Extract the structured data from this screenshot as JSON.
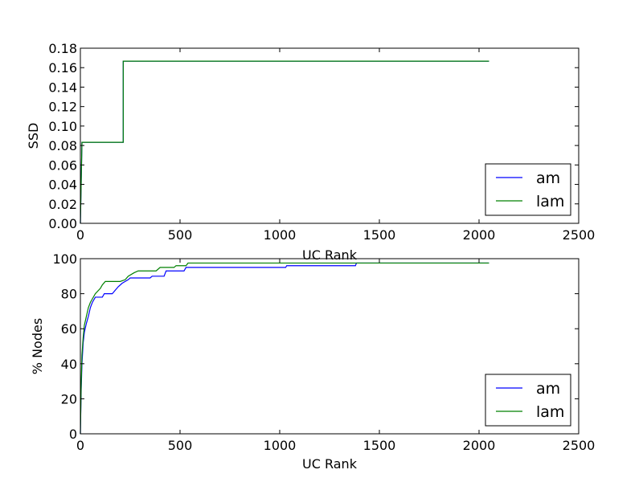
{
  "chart_data": [
    {
      "type": "line",
      "xlabel": "UC Rank",
      "ylabel": "SSD",
      "xlim": [
        0,
        2500
      ],
      "ylim": [
        0,
        0.18
      ],
      "xticks": [
        "0",
        "500",
        "1000",
        "1500",
        "2000",
        "2500"
      ],
      "yticks": [
        "0.00",
        "0.02",
        "0.04",
        "0.06",
        "0.08",
        "0.10",
        "0.12",
        "0.14",
        "0.16",
        "0.18"
      ],
      "grid": false,
      "legend_position": "lower-right",
      "series": [
        {
          "name": "am",
          "color": "#0000ff",
          "points": [
            [
              0,
              0
            ],
            [
              8,
              0.0833
            ],
            [
              215,
              0.0833
            ],
            [
              215,
              0.1667
            ],
            [
              2050,
              0.1667
            ]
          ]
        },
        {
          "name": "lam",
          "color": "#008000",
          "points": [
            [
              0,
              0
            ],
            [
              8,
              0.0833
            ],
            [
              215,
              0.0833
            ],
            [
              215,
              0.1667
            ],
            [
              2050,
              0.1667
            ]
          ]
        }
      ]
    },
    {
      "type": "line",
      "xlabel": "UC Rank",
      "ylabel": "% Nodes",
      "xlim": [
        0,
        2500
      ],
      "ylim": [
        0,
        100
      ],
      "xticks": [
        "0",
        "500",
        "1000",
        "1500",
        "2000",
        "2500"
      ],
      "yticks": [
        "0",
        "20",
        "40",
        "60",
        "80",
        "100"
      ],
      "grid": false,
      "legend_position": "lower-right",
      "series": [
        {
          "name": "am",
          "color": "#0000ff",
          "points": [
            [
              0,
              0
            ],
            [
              4,
              25
            ],
            [
              8,
              40
            ],
            [
              14,
              52
            ],
            [
              20,
              58
            ],
            [
              30,
              63
            ],
            [
              40,
              67
            ],
            [
              50,
              72
            ],
            [
              60,
              75
            ],
            [
              75,
              78
            ],
            [
              110,
              78
            ],
            [
              120,
              80
            ],
            [
              160,
              80
            ],
            [
              175,
              82
            ],
            [
              190,
              84
            ],
            [
              210,
              86
            ],
            [
              240,
              88
            ],
            [
              250,
              89
            ],
            [
              350,
              89
            ],
            [
              360,
              90
            ],
            [
              420,
              90
            ],
            [
              430,
              93
            ],
            [
              520,
              93
            ],
            [
              530,
              95
            ],
            [
              1030,
              95
            ],
            [
              1035,
              96
            ],
            [
              1380,
              96
            ],
            [
              1385,
              97.5
            ],
            [
              2050,
              97.5
            ]
          ]
        },
        {
          "name": "lam",
          "color": "#008000",
          "points": [
            [
              0,
              0
            ],
            [
              4,
              28
            ],
            [
              8,
              45
            ],
            [
              14,
              55
            ],
            [
              20,
              62
            ],
            [
              30,
              67
            ],
            [
              40,
              72
            ],
            [
              50,
              75
            ],
            [
              60,
              77
            ],
            [
              75,
              80
            ],
            [
              100,
              83
            ],
            [
              110,
              85
            ],
            [
              125,
              87
            ],
            [
              200,
              87
            ],
            [
              225,
              88
            ],
            [
              240,
              90
            ],
            [
              270,
              92
            ],
            [
              290,
              93
            ],
            [
              380,
              93
            ],
            [
              400,
              95
            ],
            [
              470,
              95
            ],
            [
              480,
              96
            ],
            [
              530,
              96
            ],
            [
              540,
              97.5
            ],
            [
              2050,
              97.5
            ]
          ]
        }
      ]
    }
  ]
}
